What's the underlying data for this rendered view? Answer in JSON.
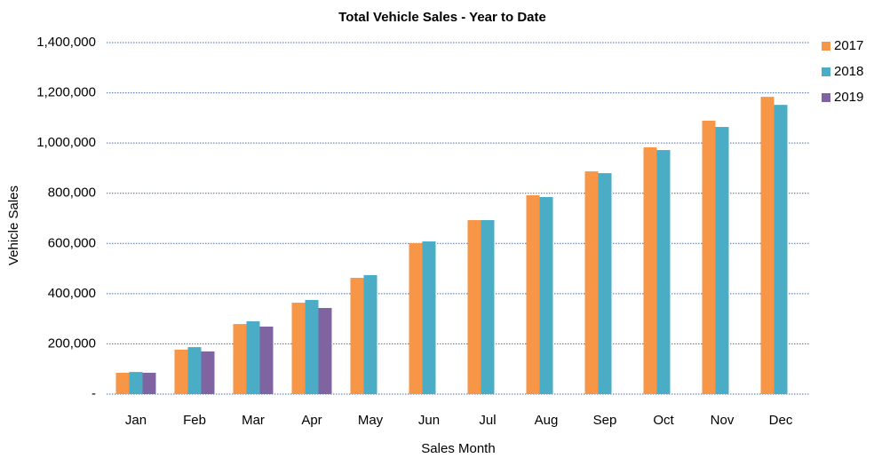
{
  "chart_data": {
    "type": "bar",
    "title": "Total Vehicle Sales - Year to Date",
    "x_label": "Sales Month",
    "y_label": "Vehicle Sales",
    "categories": [
      "Jan",
      "Feb",
      "Mar",
      "Apr",
      "May",
      "Jun",
      "Jul",
      "Aug",
      "Sep",
      "Oct",
      "Nov",
      "Dec"
    ],
    "series": [
      {
        "name": "2017",
        "color": "#f79646",
        "values": [
          85000,
          177000,
          279000,
          364000,
          463000,
          601000,
          693000,
          792000,
          887000,
          983000,
          1089000,
          1184000
        ]
      },
      {
        "name": "2018",
        "color": "#4bacc6",
        "values": [
          88000,
          187000,
          290000,
          375000,
          474000,
          608000,
          693000,
          785000,
          880000,
          972000,
          1064000,
          1152000
        ]
      },
      {
        "name": "2019",
        "color": "#8064a2",
        "values": [
          85000,
          170000,
          269000,
          343000,
          null,
          null,
          null,
          null,
          null,
          null,
          null,
          null
        ]
      }
    ],
    "ylim": [
      0,
      1400000
    ],
    "yticks": [
      {
        "value": 0,
        "label": "-"
      },
      {
        "value": 200000,
        "label": "200,000"
      },
      {
        "value": 400000,
        "label": "400,000"
      },
      {
        "value": 600000,
        "label": "600,000"
      },
      {
        "value": 800000,
        "label": "800,000"
      },
      {
        "value": 1000000,
        "label": "1,000,000"
      },
      {
        "value": 1200000,
        "label": "1,200,000"
      },
      {
        "value": 1400000,
        "label": "1,400,000"
      }
    ],
    "grid": true,
    "legend": "right"
  }
}
